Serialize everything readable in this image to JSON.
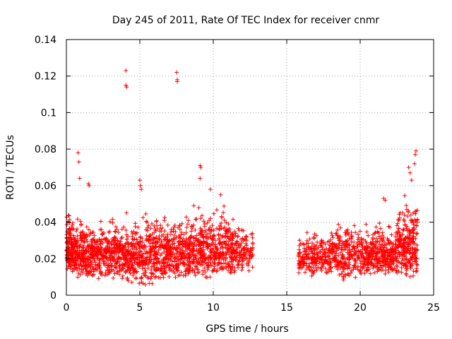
{
  "chart_data": {
    "type": "scatter",
    "title": "Day 245 of 2011, Rate Of TEC Index for receiver cnmr",
    "xlabel": "GPS time / hours",
    "ylabel": "ROTI / TECUs",
    "xlim": [
      0,
      25
    ],
    "ylim": [
      0,
      0.14
    ],
    "xticks": [
      0,
      5,
      10,
      15,
      20,
      25
    ],
    "yticks": [
      0,
      0.02,
      0.04,
      0.06,
      0.08,
      0.1,
      0.12,
      0.14
    ],
    "xtick_labels": [
      "0",
      "5",
      "10",
      "15",
      "20",
      "25"
    ],
    "ytick_labels": [
      "0",
      "0.02",
      "0.04",
      "0.06",
      "0.08",
      "0.1",
      "0.12",
      "0.14"
    ],
    "grid": true,
    "marker": "+",
    "color": "#ff0000",
    "density_profile": [
      {
        "x_start": 0.0,
        "x_end": 0.5,
        "y_low": 0.01,
        "y_high": 0.05,
        "count": 140
      },
      {
        "x_start": 0.5,
        "x_end": 1.5,
        "y_low": 0.008,
        "y_high": 0.045,
        "count": 190
      },
      {
        "x_start": 1.5,
        "x_end": 4.0,
        "y_low": 0.008,
        "y_high": 0.045,
        "count": 380
      },
      {
        "x_start": 4.0,
        "x_end": 6.0,
        "y_low": 0.005,
        "y_high": 0.048,
        "count": 300
      },
      {
        "x_start": 6.0,
        "x_end": 8.5,
        "y_low": 0.007,
        "y_high": 0.048,
        "count": 380
      },
      {
        "x_start": 8.5,
        "x_end": 11.5,
        "y_low": 0.008,
        "y_high": 0.052,
        "count": 440
      },
      {
        "x_start": 11.5,
        "x_end": 12.7,
        "y_low": 0.012,
        "y_high": 0.04,
        "count": 110
      },
      {
        "x_start": 15.8,
        "x_end": 18.0,
        "y_low": 0.01,
        "y_high": 0.038,
        "count": 230
      },
      {
        "x_start": 18.0,
        "x_end": 20.5,
        "y_low": 0.008,
        "y_high": 0.045,
        "count": 300
      },
      {
        "x_start": 20.5,
        "x_end": 22.5,
        "y_low": 0.01,
        "y_high": 0.042,
        "count": 280
      },
      {
        "x_start": 22.5,
        "x_end": 23.9,
        "y_low": 0.008,
        "y_high": 0.058,
        "count": 260
      }
    ],
    "notable_points": [
      {
        "x": 4.05,
        "y": 0.123
      },
      {
        "x": 4.05,
        "y": 0.115
      },
      {
        "x": 4.1,
        "y": 0.114
      },
      {
        "x": 7.5,
        "y": 0.122
      },
      {
        "x": 7.55,
        "y": 0.118
      },
      {
        "x": 7.55,
        "y": 0.117
      },
      {
        "x": 0.8,
        "y": 0.078
      },
      {
        "x": 0.85,
        "y": 0.073
      },
      {
        "x": 0.9,
        "y": 0.064
      },
      {
        "x": 1.5,
        "y": 0.061
      },
      {
        "x": 1.55,
        "y": 0.06
      },
      {
        "x": 5.0,
        "y": 0.063
      },
      {
        "x": 5.05,
        "y": 0.06
      },
      {
        "x": 5.1,
        "y": 0.058
      },
      {
        "x": 9.1,
        "y": 0.071
      },
      {
        "x": 9.15,
        "y": 0.07
      },
      {
        "x": 9.1,
        "y": 0.064
      },
      {
        "x": 9.8,
        "y": 0.058
      },
      {
        "x": 10.5,
        "y": 0.055
      },
      {
        "x": 21.6,
        "y": 0.053
      },
      {
        "x": 21.7,
        "y": 0.052
      },
      {
        "x": 23.8,
        "y": 0.079
      },
      {
        "x": 23.75,
        "y": 0.077
      },
      {
        "x": 23.7,
        "y": 0.072
      },
      {
        "x": 23.3,
        "y": 0.07
      },
      {
        "x": 23.4,
        "y": 0.067
      },
      {
        "x": 23.5,
        "y": 0.063
      }
    ]
  }
}
